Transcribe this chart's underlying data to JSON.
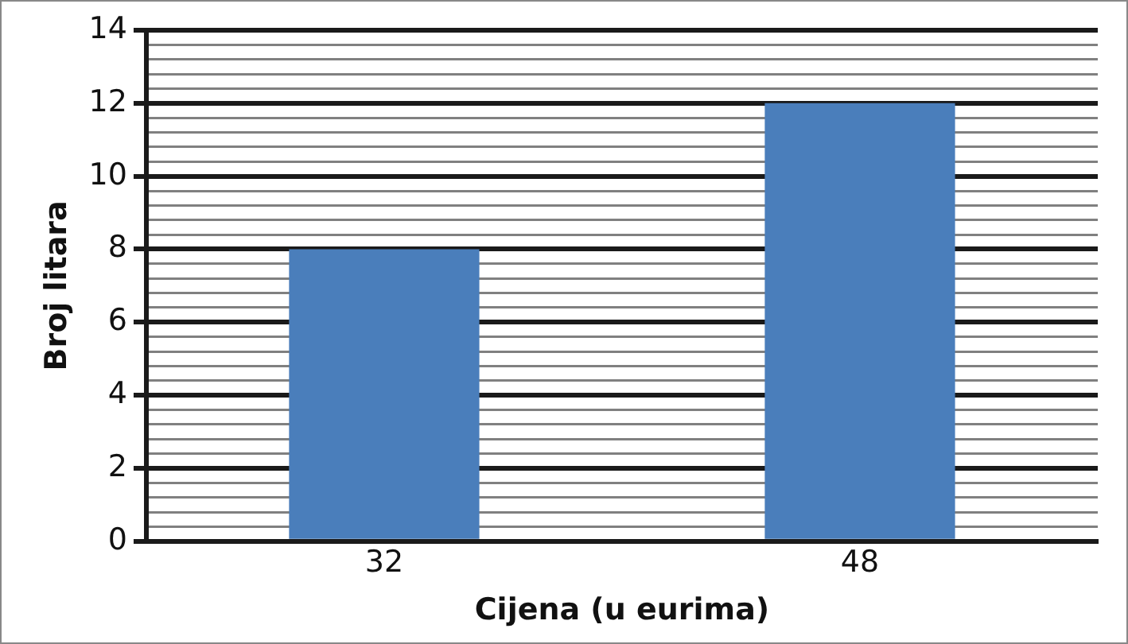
{
  "chart_data": {
    "type": "bar",
    "xlabel": "Cijena (u eurima)",
    "ylabel": "Broj litara",
    "categories": [
      "32",
      "48"
    ],
    "values": [
      8,
      12
    ],
    "color": "#4a7ebb",
    "ylim": [
      0,
      14
    ],
    "yticks": [
      0,
      {
        "value": 0.4,
        "label": null
      },
      {
        "value": 0.8,
        "label": null
      },
      {
        "value": 1.2,
        "label": null
      },
      {
        "value": 1.6,
        "label": null
      },
      2,
      {
        "value": 2.4,
        "label": null
      },
      {
        "value": 2.8,
        "label": null
      },
      {
        "value": 3.2,
        "label": null
      },
      {
        "value": 3.6,
        "label": null
      },
      4,
      {
        "value": 4.4,
        "label": null
      },
      {
        "value": 4.8,
        "label": null
      },
      {
        "value": 5.2,
        "label": null
      },
      {
        "value": 5.6,
        "label": null
      },
      6,
      {
        "value": 6.4,
        "label": null
      },
      {
        "value": 6.8,
        "label": null
      },
      {
        "value": 7.2,
        "label": null
      },
      {
        "value": 7.6,
        "label": null
      },
      8,
      {
        "value": 8.4,
        "label": null
      },
      {
        "value": 8.8,
        "label": null
      },
      {
        "value": 9.2,
        "label": null
      },
      {
        "value": 9.6,
        "label": null
      },
      10,
      {
        "value": 10.4,
        "label": null
      },
      {
        "value": 10.8,
        "label": null
      },
      {
        "value": 11.2,
        "label": null
      },
      {
        "value": 11.6,
        "label": null
      },
      12,
      {
        "value": 12.4,
        "label": null
      },
      {
        "value": 12.8,
        "label": null
      },
      {
        "value": 13.2,
        "label": null
      },
      {
        "value": 13.6,
        "label": null
      },
      14
    ],
    "grid": "y",
    "legend": false
  }
}
